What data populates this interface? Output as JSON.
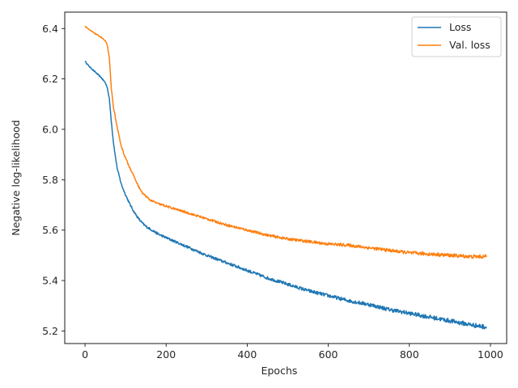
{
  "chart_data": {
    "type": "line",
    "title": "",
    "xlabel": "Epochs",
    "ylabel": "Negative log-likelihood",
    "xlim": [
      -50,
      1040
    ],
    "ylim": [
      5.15,
      6.465
    ],
    "xticks": [
      0,
      200,
      400,
      600,
      800,
      1000
    ],
    "yticks": [
      5.2,
      5.4,
      5.6,
      5.8,
      6.0,
      6.2,
      6.4
    ],
    "grid": false,
    "legend_position": "top-right",
    "series": [
      {
        "name": "Loss",
        "color": "#1f77b4",
        "noise": 0.006,
        "x": [
          0,
          10,
          20,
          30,
          40,
          50,
          55,
          60,
          65,
          70,
          75,
          80,
          90,
          100,
          110,
          120,
          130,
          140,
          150,
          160,
          180,
          200,
          250,
          300,
          350,
          400,
          450,
          500,
          550,
          600,
          650,
          700,
          750,
          800,
          850,
          900,
          950,
          990
        ],
        "y": [
          6.27,
          6.25,
          6.235,
          6.22,
          6.205,
          6.185,
          6.165,
          6.12,
          6.03,
          5.95,
          5.89,
          5.84,
          5.78,
          5.74,
          5.705,
          5.675,
          5.65,
          5.63,
          5.615,
          5.605,
          5.585,
          5.57,
          5.535,
          5.5,
          5.47,
          5.44,
          5.41,
          5.385,
          5.36,
          5.34,
          5.32,
          5.305,
          5.285,
          5.27,
          5.255,
          5.24,
          5.225,
          5.215
        ]
      },
      {
        "name": "Val. loss",
        "color": "#ff7f0e",
        "noise": 0.005,
        "x": [
          0,
          10,
          20,
          30,
          40,
          50,
          55,
          60,
          65,
          70,
          75,
          80,
          90,
          100,
          110,
          120,
          130,
          140,
          150,
          160,
          180,
          200,
          250,
          300,
          350,
          400,
          450,
          500,
          550,
          600,
          650,
          700,
          750,
          800,
          850,
          900,
          950,
          990
        ],
        "y": [
          6.41,
          6.395,
          6.385,
          6.375,
          6.365,
          6.35,
          6.335,
          6.28,
          6.16,
          6.09,
          6.045,
          6.0,
          5.93,
          5.885,
          5.85,
          5.815,
          5.78,
          5.75,
          5.735,
          5.72,
          5.705,
          5.695,
          5.67,
          5.645,
          5.62,
          5.6,
          5.58,
          5.565,
          5.555,
          5.545,
          5.54,
          5.53,
          5.52,
          5.51,
          5.505,
          5.5,
          5.495,
          5.495
        ]
      }
    ]
  }
}
